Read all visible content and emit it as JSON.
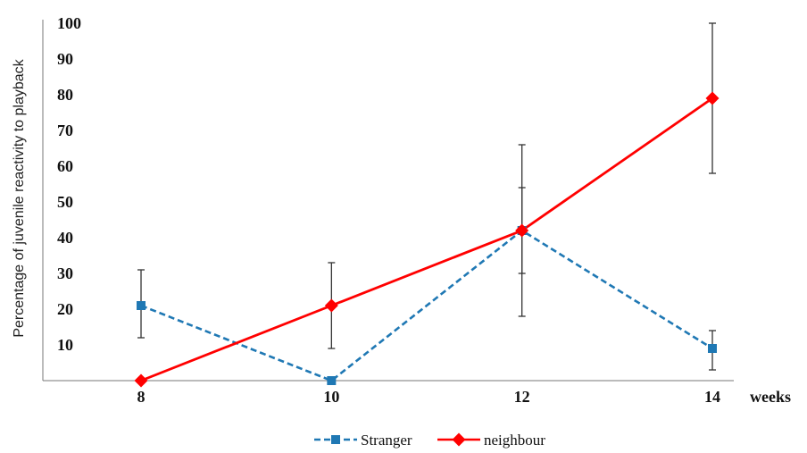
{
  "chart_data": {
    "type": "line",
    "title": "",
    "xlabel": "weeks",
    "ylabel": "Percentage of juvenile reactivity to playback",
    "x": [
      8,
      10,
      12,
      14
    ],
    "ylim": [
      0,
      100
    ],
    "yticks": [
      10,
      20,
      30,
      40,
      50,
      60,
      70,
      80,
      90,
      100
    ],
    "grid": false,
    "legend": "bottom-center",
    "series": [
      {
        "name": "Stranger",
        "values": [
          21,
          0,
          42,
          9
        ],
        "error_low": [
          12,
          0,
          30,
          3
        ],
        "error_high": [
          31,
          0,
          54,
          14
        ],
        "color": "#1f78b4",
        "style": "dashed",
        "marker": "square"
      },
      {
        "name": "neighbour",
        "values": [
          0,
          21,
          42,
          79
        ],
        "error_low": [
          0,
          9,
          18,
          58
        ],
        "error_high": [
          0,
          33,
          66,
          100
        ],
        "color": "#ff0000",
        "style": "solid",
        "marker": "diamond"
      }
    ]
  }
}
